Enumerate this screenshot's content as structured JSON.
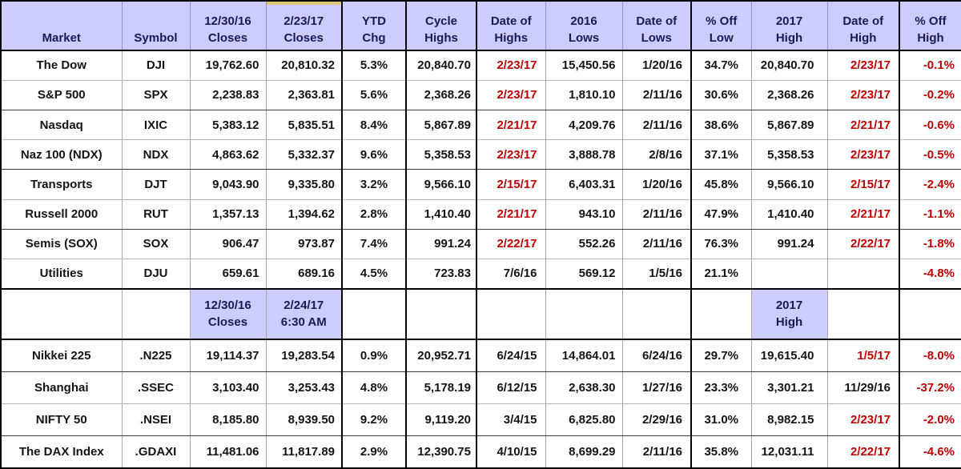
{
  "title": "Market indexes performance summary table",
  "colors": {
    "header_bg": "#ccccff",
    "header_text": "#1a1a52",
    "body_text": "#141414",
    "red_text": "#c00000",
    "grid_light": "#b3b3b3",
    "grid_dark": "#000000",
    "highlight_strip": "#dcc97a"
  },
  "columns": [
    {
      "id": "market",
      "l1": "",
      "l2": "Market"
    },
    {
      "id": "symbol",
      "l1": "",
      "l2": "Symbol"
    },
    {
      "id": "closes-123016",
      "l1": "12/30/16",
      "l2": "Closes"
    },
    {
      "id": "closes-22317",
      "l1": "2/23/17",
      "l2": "Closes"
    },
    {
      "id": "ytd-chg",
      "l1": "YTD",
      "l2": "Chg"
    },
    {
      "id": "cycle-highs",
      "l1": "Cycle",
      "l2": "Highs"
    },
    {
      "id": "date-of-highs",
      "l1": "Date of",
      "l2": "Highs"
    },
    {
      "id": "lows-2016",
      "l1": "2016",
      "l2": "Lows"
    },
    {
      "id": "date-of-lows",
      "l1": "Date of",
      "l2": "Lows"
    },
    {
      "id": "pct-off-low",
      "l1": "% Off",
      "l2": "Low"
    },
    {
      "id": "high-2017",
      "l1": "2017",
      "l2": "High"
    },
    {
      "id": "date-of-high",
      "l1": "Date of",
      "l2": "High"
    },
    {
      "id": "pct-off-high",
      "l1": "% Off",
      "l2": "High"
    }
  ],
  "us_rows": [
    {
      "cells": [
        {
          "t": "The Dow"
        },
        {
          "t": "DJI"
        },
        {
          "t": "19,762.60"
        },
        {
          "t": "20,810.32"
        },
        {
          "t": "5.3%"
        },
        {
          "t": "20,840.70"
        },
        {
          "t": "2/23/17",
          "red": true
        },
        {
          "t": "15,450.56"
        },
        {
          "t": "1/20/16"
        },
        {
          "t": "34.7%"
        },
        {
          "t": "20,840.70"
        },
        {
          "t": "2/23/17",
          "red": true
        },
        {
          "t": "-0.1%",
          "red": true
        }
      ]
    },
    {
      "cells": [
        {
          "t": "S&P 500"
        },
        {
          "t": "SPX"
        },
        {
          "t": "2,238.83"
        },
        {
          "t": "2,363.81"
        },
        {
          "t": "5.6%"
        },
        {
          "t": "2,368.26"
        },
        {
          "t": "2/23/17",
          "red": true
        },
        {
          "t": "1,810.10"
        },
        {
          "t": "2/11/16"
        },
        {
          "t": "30.6%"
        },
        {
          "t": "2,368.26"
        },
        {
          "t": "2/23/17",
          "red": true
        },
        {
          "t": "-0.2%",
          "red": true
        }
      ]
    },
    {
      "cells": [
        {
          "t": "Nasdaq"
        },
        {
          "t": "IXIC"
        },
        {
          "t": "5,383.12"
        },
        {
          "t": "5,835.51"
        },
        {
          "t": "8.4%"
        },
        {
          "t": "5,867.89"
        },
        {
          "t": "2/21/17",
          "red": true
        },
        {
          "t": "4,209.76"
        },
        {
          "t": "2/11/16"
        },
        {
          "t": "38.6%"
        },
        {
          "t": "5,867.89"
        },
        {
          "t": "2/21/17",
          "red": true
        },
        {
          "t": "-0.6%",
          "red": true
        }
      ]
    },
    {
      "cells": [
        {
          "t": "Naz 100 (NDX)"
        },
        {
          "t": "NDX"
        },
        {
          "t": "4,863.62"
        },
        {
          "t": "5,332.37"
        },
        {
          "t": "9.6%"
        },
        {
          "t": "5,358.53"
        },
        {
          "t": "2/23/17",
          "red": true
        },
        {
          "t": "3,888.78"
        },
        {
          "t": "2/8/16"
        },
        {
          "t": "37.1%"
        },
        {
          "t": "5,358.53"
        },
        {
          "t": "2/23/17",
          "red": true
        },
        {
          "t": "-0.5%",
          "red": true
        }
      ]
    },
    {
      "cells": [
        {
          "t": "Transports"
        },
        {
          "t": "DJT"
        },
        {
          "t": "9,043.90"
        },
        {
          "t": "9,335.80"
        },
        {
          "t": "3.2%"
        },
        {
          "t": "9,566.10"
        },
        {
          "t": "2/15/17",
          "red": true
        },
        {
          "t": "6,403.31"
        },
        {
          "t": "1/20/16"
        },
        {
          "t": "45.8%"
        },
        {
          "t": "9,566.10"
        },
        {
          "t": "2/15/17",
          "red": true
        },
        {
          "t": "-2.4%",
          "red": true
        }
      ]
    },
    {
      "cells": [
        {
          "t": "Russell 2000"
        },
        {
          "t": "RUT"
        },
        {
          "t": "1,357.13"
        },
        {
          "t": "1,394.62"
        },
        {
          "t": "2.8%"
        },
        {
          "t": "1,410.40"
        },
        {
          "t": "2/21/17",
          "red": true
        },
        {
          "t": "943.10"
        },
        {
          "t": "2/11/16"
        },
        {
          "t": "47.9%"
        },
        {
          "t": "1,410.40"
        },
        {
          "t": "2/21/17",
          "red": true
        },
        {
          "t": "-1.1%",
          "red": true
        }
      ]
    },
    {
      "cells": [
        {
          "t": "Semis (SOX)"
        },
        {
          "t": "SOX"
        },
        {
          "t": "906.47"
        },
        {
          "t": "973.87"
        },
        {
          "t": "7.4%"
        },
        {
          "t": "991.24"
        },
        {
          "t": "2/22/17",
          "red": true
        },
        {
          "t": "552.26"
        },
        {
          "t": "2/11/16"
        },
        {
          "t": "76.3%"
        },
        {
          "t": "991.24"
        },
        {
          "t": "2/22/17",
          "red": true
        },
        {
          "t": "-1.8%",
          "red": true
        }
      ]
    },
    {
      "cells": [
        {
          "t": "Utilities"
        },
        {
          "t": "DJU"
        },
        {
          "t": "659.61"
        },
        {
          "t": "689.16"
        },
        {
          "t": "4.5%"
        },
        {
          "t": "723.83"
        },
        {
          "t": "7/6/16"
        },
        {
          "t": "569.12"
        },
        {
          "t": "1/5/16"
        },
        {
          "t": "21.1%"
        },
        {
          "t": ""
        },
        {
          "t": ""
        },
        {
          "t": "-4.8%",
          "red": true
        }
      ]
    }
  ],
  "mid_header": {
    "cells": [
      {
        "l1": "",
        "l2": ""
      },
      {
        "l1": "",
        "l2": ""
      },
      {
        "l1": "12/30/16",
        "l2": "Closes",
        "hl": true
      },
      {
        "l1": "2/24/17",
        "l2": "6:30 AM",
        "hl": true
      },
      {
        "l1": "",
        "l2": ""
      },
      {
        "l1": "",
        "l2": ""
      },
      {
        "l1": "",
        "l2": ""
      },
      {
        "l1": "",
        "l2": ""
      },
      {
        "l1": "",
        "l2": ""
      },
      {
        "l1": "",
        "l2": ""
      },
      {
        "l1": "2017",
        "l2": "High",
        "hl": true
      },
      {
        "l1": "",
        "l2": ""
      },
      {
        "l1": "",
        "l2": ""
      }
    ]
  },
  "intl_rows": [
    {
      "cells": [
        {
          "t": "Nikkei 225"
        },
        {
          "t": ".N225"
        },
        {
          "t": "19,114.37"
        },
        {
          "t": "19,283.54"
        },
        {
          "t": "0.9%"
        },
        {
          "t": "20,952.71"
        },
        {
          "t": "6/24/15"
        },
        {
          "t": "14,864.01"
        },
        {
          "t": "6/24/16"
        },
        {
          "t": "29.7%"
        },
        {
          "t": "19,615.40"
        },
        {
          "t": "1/5/17",
          "red": true
        },
        {
          "t": "-8.0%",
          "red": true
        }
      ]
    },
    {
      "cells": [
        {
          "t": "Shanghai"
        },
        {
          "t": ".SSEC"
        },
        {
          "t": "3,103.40"
        },
        {
          "t": "3,253.43"
        },
        {
          "t": "4.8%"
        },
        {
          "t": "5,178.19"
        },
        {
          "t": "6/12/15"
        },
        {
          "t": "2,638.30"
        },
        {
          "t": "1/27/16"
        },
        {
          "t": "23.3%"
        },
        {
          "t": "3,301.21"
        },
        {
          "t": "11/29/16"
        },
        {
          "t": "-37.2%",
          "red": true
        }
      ]
    },
    {
      "cells": [
        {
          "t": "NIFTY 50"
        },
        {
          "t": ".NSEI"
        },
        {
          "t": "8,185.80"
        },
        {
          "t": "8,939.50"
        },
        {
          "t": "9.2%"
        },
        {
          "t": "9,119.20"
        },
        {
          "t": "3/4/15"
        },
        {
          "t": "6,825.80"
        },
        {
          "t": "2/29/16"
        },
        {
          "t": "31.0%"
        },
        {
          "t": "8,982.15"
        },
        {
          "t": "2/23/17",
          "red": true
        },
        {
          "t": "-2.0%",
          "red": true
        }
      ]
    },
    {
      "cells": [
        {
          "t": "The DAX Index"
        },
        {
          "t": ".GDAXI"
        },
        {
          "t": "11,481.06"
        },
        {
          "t": "11,817.89"
        },
        {
          "t": "2.9%"
        },
        {
          "t": "12,390.75"
        },
        {
          "t": "4/10/15"
        },
        {
          "t": "8,699.29"
        },
        {
          "t": "2/11/16"
        },
        {
          "t": "35.8%"
        },
        {
          "t": "12,031.11"
        },
        {
          "t": "2/22/17",
          "red": true
        },
        {
          "t": "-4.6%",
          "red": true
        }
      ]
    }
  ]
}
